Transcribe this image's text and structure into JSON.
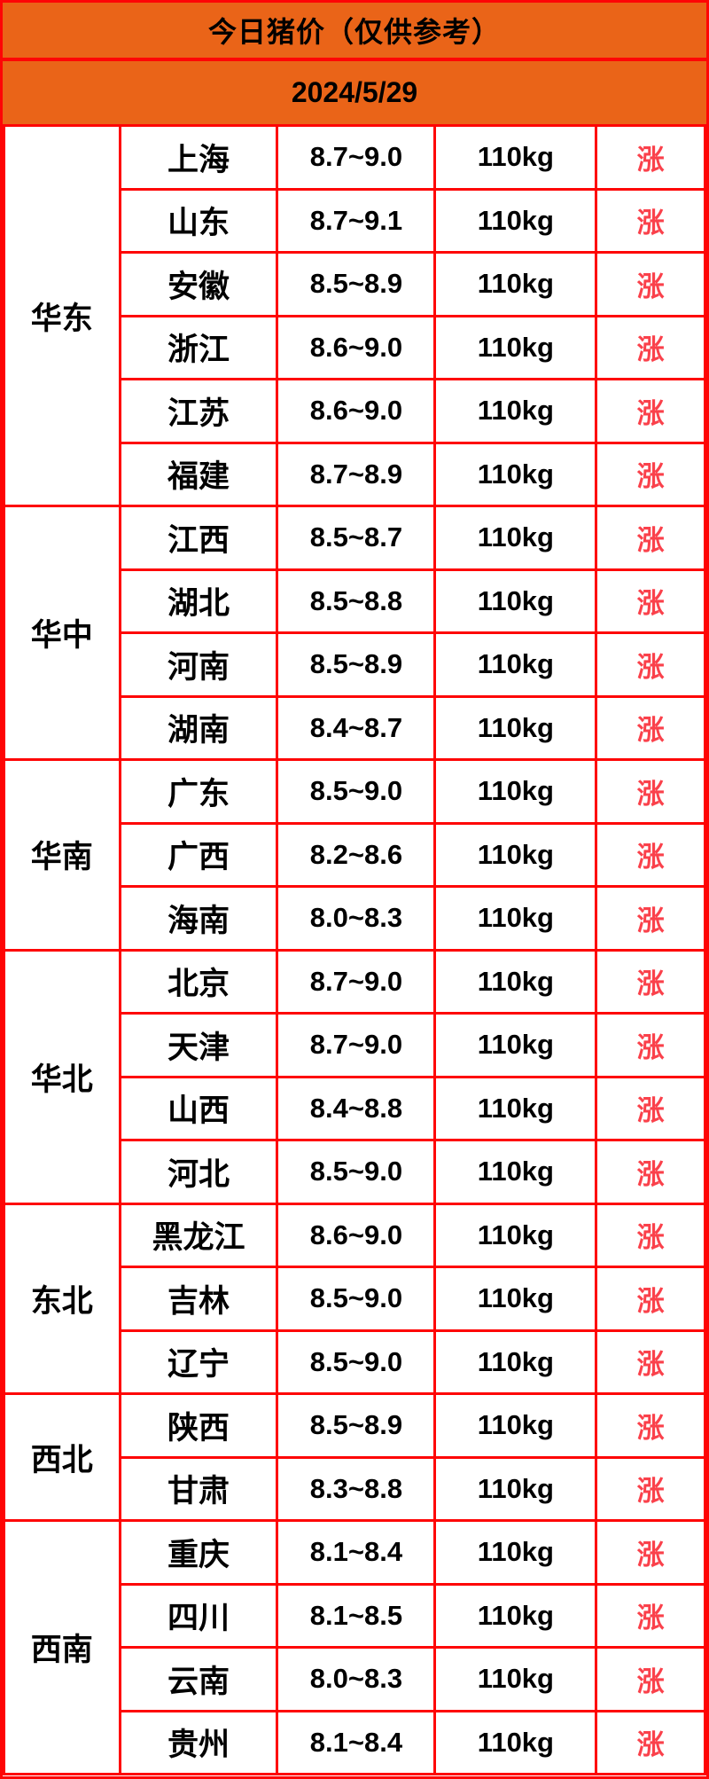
{
  "header": {
    "title": "今日猪价（仅供参考）",
    "date": "2024/5/29"
  },
  "colors": {
    "header_bg": "#EA6418",
    "border_red": "#FE0505",
    "trend_red": "#FA414B",
    "text_black": "#000000"
  },
  "table": {
    "regions": [
      {
        "name": "华东",
        "rows": [
          {
            "province": "上海",
            "price": "8.7~9.0",
            "weight": "110kg",
            "trend": "涨"
          },
          {
            "province": "山东",
            "price": "8.7~9.1",
            "weight": "110kg",
            "trend": "涨"
          },
          {
            "province": "安徽",
            "price": "8.5~8.9",
            "weight": "110kg",
            "trend": "涨"
          },
          {
            "province": "浙江",
            "price": "8.6~9.0",
            "weight": "110kg",
            "trend": "涨"
          },
          {
            "province": "江苏",
            "price": "8.6~9.0",
            "weight": "110kg",
            "trend": "涨"
          },
          {
            "province": "福建",
            "price": "8.7~8.9",
            "weight": "110kg",
            "trend": "涨"
          }
        ]
      },
      {
        "name": "华中",
        "rows": [
          {
            "province": "江西",
            "price": "8.5~8.7",
            "weight": "110kg",
            "trend": "涨"
          },
          {
            "province": "湖北",
            "price": "8.5~8.8",
            "weight": "110kg",
            "trend": "涨"
          },
          {
            "province": "河南",
            "price": "8.5~8.9",
            "weight": "110kg",
            "trend": "涨"
          },
          {
            "province": "湖南",
            "price": "8.4~8.7",
            "weight": "110kg",
            "trend": "涨"
          }
        ]
      },
      {
        "name": "华南",
        "rows": [
          {
            "province": "广东",
            "price": "8.5~9.0",
            "weight": "110kg",
            "trend": "涨"
          },
          {
            "province": "广西",
            "price": "8.2~8.6",
            "weight": "110kg",
            "trend": "涨"
          },
          {
            "province": "海南",
            "price": "8.0~8.3",
            "weight": "110kg",
            "trend": "涨"
          }
        ]
      },
      {
        "name": "华北",
        "rows": [
          {
            "province": "北京",
            "price": "8.7~9.0",
            "weight": "110kg",
            "trend": "涨"
          },
          {
            "province": "天津",
            "price": "8.7~9.0",
            "weight": "110kg",
            "trend": "涨"
          },
          {
            "province": "山西",
            "price": "8.4~8.8",
            "weight": "110kg",
            "trend": "涨"
          },
          {
            "province": "河北",
            "price": "8.5~9.0",
            "weight": "110kg",
            "trend": "涨"
          }
        ]
      },
      {
        "name": "东北",
        "rows": [
          {
            "province": "黑龙江",
            "price": "8.6~9.0",
            "weight": "110kg",
            "trend": "涨"
          },
          {
            "province": "吉林",
            "price": "8.5~9.0",
            "weight": "110kg",
            "trend": "涨"
          },
          {
            "province": "辽宁",
            "price": "8.5~9.0",
            "weight": "110kg",
            "trend": "涨"
          }
        ]
      },
      {
        "name": "西北",
        "rows": [
          {
            "province": "陕西",
            "price": "8.5~8.9",
            "weight": "110kg",
            "trend": "涨"
          },
          {
            "province": "甘肃",
            "price": "8.3~8.8",
            "weight": "110kg",
            "trend": "涨"
          }
        ]
      },
      {
        "name": "西南",
        "rows": [
          {
            "province": "重庆",
            "price": "8.1~8.4",
            "weight": "110kg",
            "trend": "涨"
          },
          {
            "province": "四川",
            "price": "8.1~8.5",
            "weight": "110kg",
            "trend": "涨"
          },
          {
            "province": "云南",
            "price": "8.0~8.3",
            "weight": "110kg",
            "trend": "涨"
          },
          {
            "province": "贵州",
            "price": "8.1~8.4",
            "weight": "110kg",
            "trend": "涨"
          }
        ]
      }
    ]
  }
}
